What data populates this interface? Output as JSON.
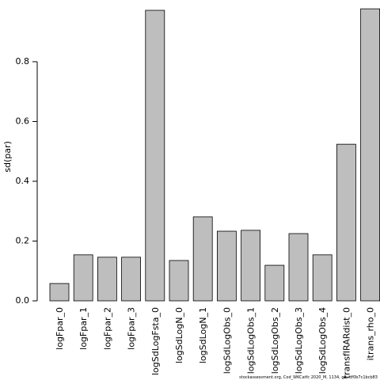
{
  "chart_data": {
    "type": "bar",
    "ylabel": "sd(par)",
    "categories": [
      "logFpar_0",
      "logFpar_1",
      "logFpar_2",
      "logFpar_3",
      "logSdLogFsta_0",
      "logSdLogN_0",
      "logSdLogN_1",
      "logSdLogObs_0",
      "logSdLogObs_1",
      "logSdLogObs_2",
      "logSdLogObs_3",
      "logSdLogObs_4",
      "transfIRARdist_0",
      "itrans_rho_0"
    ],
    "values": [
      0.058,
      0.154,
      0.146,
      0.146,
      0.972,
      0.135,
      0.281,
      0.233,
      0.236,
      0.119,
      0.225,
      0.154,
      0.524,
      0.977
    ],
    "color": "#bebebe",
    "ylim": [
      0,
      0.98
    ],
    "yticks": [
      {
        "value": 0,
        "label": "0.0"
      },
      0.2,
      0.4,
      0.6,
      0.8
    ],
    "footer": "stockassessment.org, Cod_WKCatfc 2020_M, 1134, git: df0b7c1bcb83"
  }
}
